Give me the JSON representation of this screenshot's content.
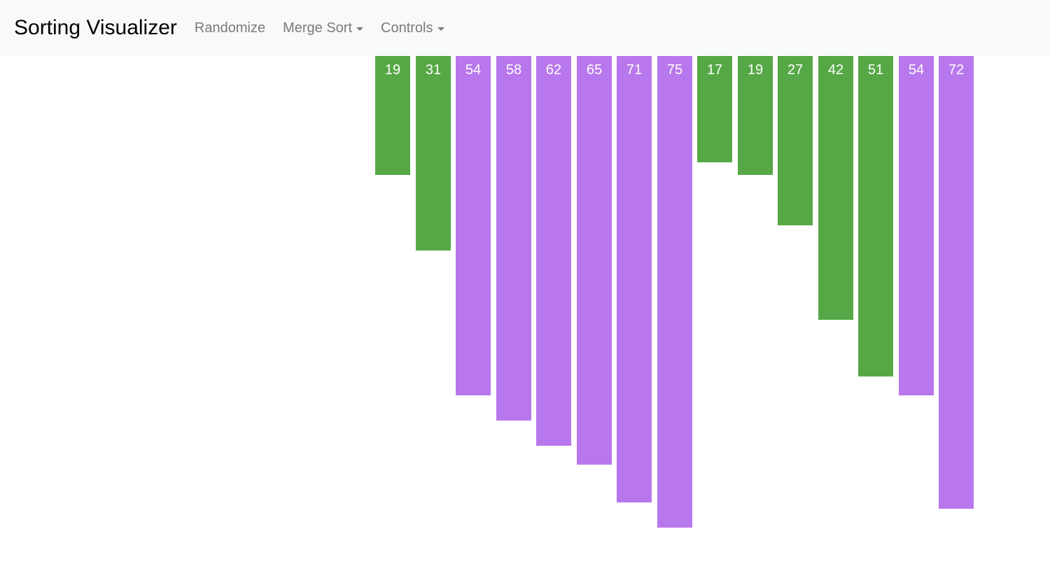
{
  "navbar": {
    "brand": "Sorting Visualizer",
    "randomize_label": "Randomize",
    "algorithm_label": "Merge Sort",
    "controls_label": "Controls"
  },
  "colors": {
    "navbar_bg": "#f8f9fa",
    "compared": "#56a846",
    "default": "#b877ec",
    "bar_text": "#ffffff"
  },
  "bars": [
    {
      "value": 19,
      "state": "compared"
    },
    {
      "value": 31,
      "state": "compared"
    },
    {
      "value": 54,
      "state": "default"
    },
    {
      "value": 58,
      "state": "default"
    },
    {
      "value": 62,
      "state": "default"
    },
    {
      "value": 65,
      "state": "default"
    },
    {
      "value": 71,
      "state": "default"
    },
    {
      "value": 75,
      "state": "default"
    },
    {
      "value": 17,
      "state": "compared"
    },
    {
      "value": 19,
      "state": "compared"
    },
    {
      "value": 27,
      "state": "compared"
    },
    {
      "value": 42,
      "state": "compared"
    },
    {
      "value": 51,
      "state": "compared"
    },
    {
      "value": 54,
      "state": "default"
    },
    {
      "value": 72,
      "state": "default"
    }
  ]
}
